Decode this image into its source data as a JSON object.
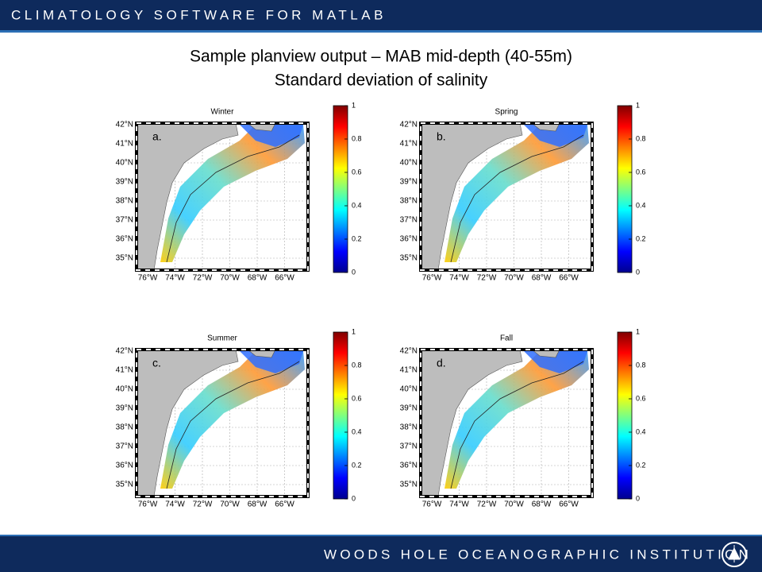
{
  "header": {
    "title": "CLIMATOLOGY SOFTWARE FOR MATLAB"
  },
  "slide": {
    "title_line1": "Sample planview output – MAB mid-depth (40-55m)",
    "title_line2": "Standard deviation of salinity"
  },
  "panels": [
    {
      "title": "Winter",
      "label": "a."
    },
    {
      "title": "Spring",
      "label": "b."
    },
    {
      "title": "Summer",
      "label": "c."
    },
    {
      "title": "Fall",
      "label": "d."
    }
  ],
  "lat_labels": [
    "42°N",
    "41°N",
    "40°N",
    "39°N",
    "38°N",
    "37°N",
    "36°N",
    "35°N"
  ],
  "lon_labels": [
    "76°W",
    "74°W",
    "72°W",
    "70°W",
    "68°W",
    "66°W"
  ],
  "colorbar_ticks": [
    "1",
    "0.8",
    "0.6",
    "0.4",
    "0.2",
    "0"
  ],
  "footer": {
    "title": "WOODS HOLE OCEANOGRAPHIC INSTITUTION"
  }
}
